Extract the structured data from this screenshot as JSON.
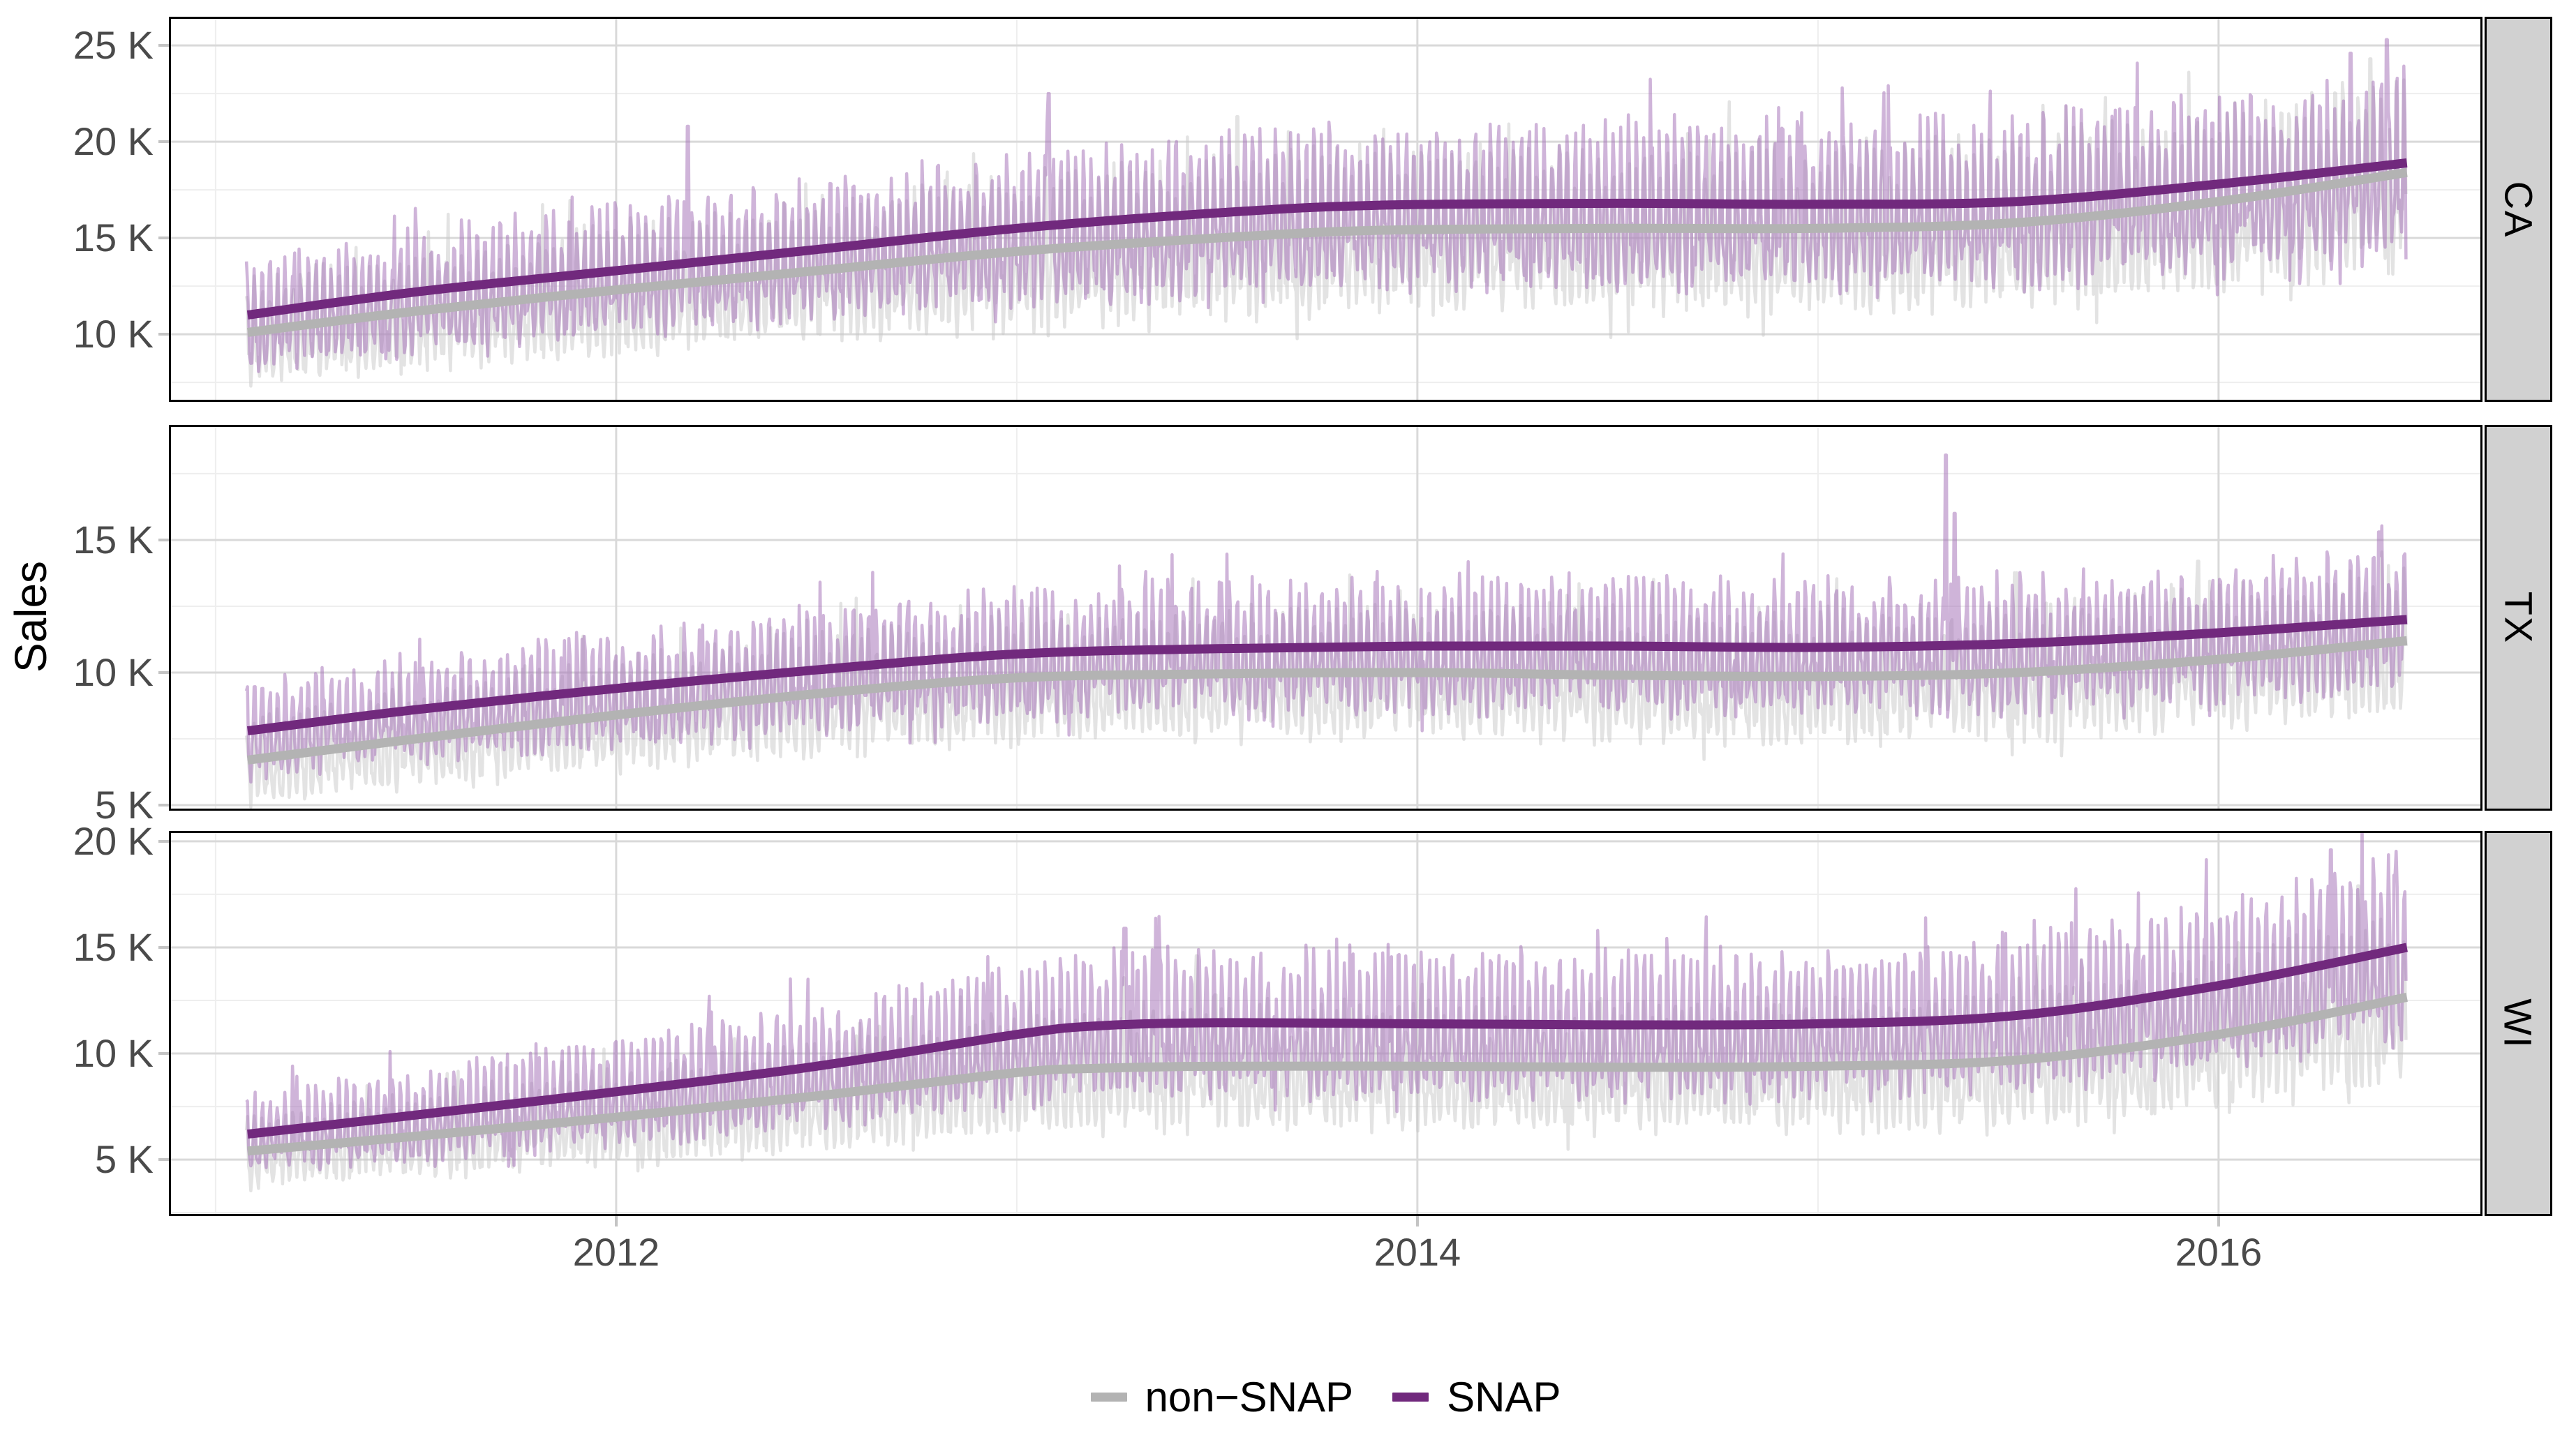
{
  "figure": {
    "y_axis_title": "Sales",
    "legend": [
      {
        "label": "non−SNAP",
        "color": "#b3b3b3"
      },
      {
        "label": "SNAP",
        "color": "#71297d"
      }
    ]
  },
  "chart_data": {
    "type": "line",
    "title": "",
    "xlabel": "",
    "ylabel": "Sales",
    "legend_position": "bottom",
    "grid": true,
    "x_domain": [
      2010.88,
      2016.66
    ],
    "data_x_range": [
      2011.077,
      2016.468
    ],
    "x_ticks": [
      {
        "label": "2012",
        "value": 2012
      },
      {
        "label": "2014",
        "value": 2014
      },
      {
        "label": "2016",
        "value": 2016
      }
    ],
    "x_minor": [
      2011,
      2013,
      2015
    ],
    "colors": {
      "smooth_snap": "#71297d",
      "smooth_nonsnap": "#b3b3b3",
      "noisy_snap": "#a877ba",
      "noisy_nonsnap": "#c7c7c7",
      "grid_major": "#d9d9d9",
      "grid_minor": "#eeeeee"
    },
    "facets": [
      {
        "label": "CA",
        "y_domain": [
          6.49,
          26.49
        ],
        "y_ticks": [
          {
            "label": "25 K",
            "value": 25
          },
          {
            "label": "20 K",
            "value": 20
          },
          {
            "label": "15 K",
            "value": 15
          },
          {
            "label": "10 K",
            "value": 10
          }
        ],
        "y_minor": [
          22.5,
          17.5,
          12.5,
          7.5
        ],
        "series": [
          {
            "name": "non-SNAP",
            "smooth": [
              [
                2011.08,
                10.1
              ],
              [
                2011.5,
                11.2
              ],
              [
                2012.0,
                12.3
              ],
              [
                2012.5,
                13.3
              ],
              [
                2013.0,
                14.3
              ],
              [
                2013.5,
                15.0
              ],
              [
                2013.9,
                15.4
              ],
              [
                2014.5,
                15.5
              ],
              [
                2015.0,
                15.5
              ],
              [
                2015.5,
                15.8
              ],
              [
                2016.0,
                16.9
              ],
              [
                2016.47,
                18.4
              ]
            ],
            "noise": {
              "amp": 0.21,
              "jitter": 0.09,
              "seed": 11
            },
            "spikes": [
              [
                2013.55,
                21.3
              ],
              [
                2016.38,
                24.3
              ]
            ]
          },
          {
            "name": "SNAP",
            "smooth": [
              [
                2011.08,
                11.0
              ],
              [
                2011.5,
                12.2
              ],
              [
                2012.0,
                13.3
              ],
              [
                2012.5,
                14.4
              ],
              [
                2013.0,
                15.5
              ],
              [
                2013.5,
                16.3
              ],
              [
                2013.9,
                16.7
              ],
              [
                2014.5,
                16.8
              ],
              [
                2015.0,
                16.75
              ],
              [
                2015.5,
                16.9
              ],
              [
                2016.0,
                17.8
              ],
              [
                2016.47,
                18.9
              ]
            ],
            "noise": {
              "amp": 0.19,
              "jitter": 0.09,
              "seed": 12
            },
            "spikes": [
              [
                2012.18,
                20.8
              ],
              [
                2013.08,
                22.5
              ],
              [
                2016.33,
                24.6
              ],
              [
                2016.42,
                25.3
              ]
            ]
          }
        ]
      },
      {
        "label": "TX",
        "y_domain": [
          4.79,
          19.34
        ],
        "y_ticks": [
          {
            "label": "15 K",
            "value": 15
          },
          {
            "label": "10 K",
            "value": 10
          },
          {
            "label": "5 K",
            "value": 5
          }
        ],
        "y_minor": [
          17.5,
          12.5,
          7.5
        ],
        "series": [
          {
            "name": "non-SNAP",
            "smooth": [
              [
                2011.08,
                6.7
              ],
              [
                2011.5,
                7.5
              ],
              [
                2012.0,
                8.4
              ],
              [
                2012.5,
                9.2
              ],
              [
                2013.0,
                9.8
              ],
              [
                2013.5,
                9.95
              ],
              [
                2014.0,
                10.0
              ],
              [
                2014.5,
                9.9
              ],
              [
                2015.0,
                9.85
              ],
              [
                2015.5,
                10.0
              ],
              [
                2016.0,
                10.5
              ],
              [
                2016.47,
                11.2
              ]
            ],
            "noise": {
              "amp": 0.19,
              "jitter": 0.08,
              "seed": 21
            },
            "spikes": [
              [
                2015.95,
                14.2
              ]
            ]
          },
          {
            "name": "SNAP",
            "smooth": [
              [
                2011.08,
                7.8
              ],
              [
                2011.5,
                8.6
              ],
              [
                2012.0,
                9.4
              ],
              [
                2012.5,
                10.1
              ],
              [
                2013.0,
                10.7
              ],
              [
                2013.5,
                10.9
              ],
              [
                2014.0,
                11.0
              ],
              [
                2014.5,
                11.0
              ],
              [
                2015.0,
                10.95
              ],
              [
                2015.5,
                11.1
              ],
              [
                2016.0,
                11.5
              ],
              [
                2016.47,
                12.0
              ]
            ],
            "noise": {
              "amp": 0.17,
              "jitter": 0.08,
              "seed": 22
            },
            "spikes": [
              [
                2015.32,
                18.2
              ],
              [
                2015.34,
                16.0
              ],
              [
                2016.4,
                15.3
              ]
            ]
          }
        ]
      },
      {
        "label": "WI",
        "y_domain": [
          2.34,
          20.49
        ],
        "y_ticks": [
          {
            "label": "20 K",
            "value": 20
          },
          {
            "label": "15 K",
            "value": 15
          },
          {
            "label": "10 K",
            "value": 10
          },
          {
            "label": "5 K",
            "value": 5
          }
        ],
        "y_minor": [
          17.5,
          12.5,
          7.5,
          2.5
        ],
        "series": [
          {
            "name": "non-SNAP",
            "smooth": [
              [
                2011.08,
                5.4
              ],
              [
                2011.5,
                6.1
              ],
              [
                2012.0,
                7.0
              ],
              [
                2012.5,
                8.0
              ],
              [
                2013.0,
                9.1
              ],
              [
                2013.2,
                9.3
              ],
              [
                2013.5,
                9.4
              ],
              [
                2014.0,
                9.4
              ],
              [
                2014.5,
                9.35
              ],
              [
                2015.0,
                9.4
              ],
              [
                2015.5,
                9.7
              ],
              [
                2016.0,
                10.9
              ],
              [
                2016.47,
                12.65
              ]
            ],
            "noise": {
              "amp": 0.24,
              "jitter": 0.11,
              "seed": 31
            },
            "spikes": [
              [
                2013.45,
                14.6
              ],
              [
                2016.35,
                17.9
              ]
            ]
          },
          {
            "name": "SNAP",
            "smooth": [
              [
                2011.08,
                6.2
              ],
              [
                2011.5,
                7.1
              ],
              [
                2012.0,
                8.2
              ],
              [
                2012.5,
                9.4
              ],
              [
                2013.0,
                10.9
              ],
              [
                2013.2,
                11.3
              ],
              [
                2013.5,
                11.45
              ],
              [
                2014.0,
                11.4
              ],
              [
                2014.5,
                11.35
              ],
              [
                2015.0,
                11.4
              ],
              [
                2015.5,
                11.8
              ],
              [
                2016.0,
                13.2
              ],
              [
                2016.47,
                15.0
              ]
            ],
            "noise": {
              "amp": 0.23,
              "jitter": 0.1,
              "seed": 32
            },
            "spikes": [
              [
                2013.27,
                15.9
              ],
              [
                2016.28,
                19.6
              ],
              [
                2016.44,
                18.4
              ]
            ]
          }
        ]
      }
    ]
  }
}
